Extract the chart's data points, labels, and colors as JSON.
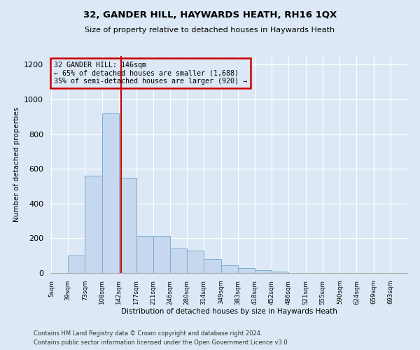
{
  "title": "32, GANDER HILL, HAYWARDS HEATH, RH16 1QX",
  "subtitle": "Size of property relative to detached houses in Haywards Heath",
  "xlabel": "Distribution of detached houses by size in Haywards Heath",
  "ylabel": "Number of detached properties",
  "footer_line1": "Contains HM Land Registry data © Crown copyright and database right 2024.",
  "footer_line2": "Contains public sector information licensed under the Open Government Licence v3.0.",
  "annotation_line1": "32 GANDER HILL: 146sqm",
  "annotation_line2": "← 65% of detached houses are smaller (1,688)",
  "annotation_line3": "35% of semi-detached houses are larger (920) →",
  "bar_color": "#c5d8ed",
  "bar_edge_color": "#7aadd4",
  "background_color": "#dce8f5",
  "vline_color": "#cc0000",
  "vline_x": 146,
  "annotation_box_edge_color": "#cc0000",
  "bins": [
    5,
    39,
    73,
    108,
    142,
    177,
    211,
    246,
    280,
    314,
    349,
    383,
    418,
    452,
    486,
    521,
    555,
    590,
    624,
    659,
    693
  ],
  "counts": [
    0,
    100,
    560,
    920,
    550,
    215,
    215,
    140,
    130,
    80,
    45,
    30,
    15,
    10,
    0,
    0,
    0,
    0,
    0,
    0
  ],
  "ylim": [
    0,
    1250
  ],
  "yticks": [
    0,
    200,
    400,
    600,
    800,
    1000,
    1200
  ],
  "figsize": [
    6.0,
    5.0
  ],
  "dpi": 100
}
